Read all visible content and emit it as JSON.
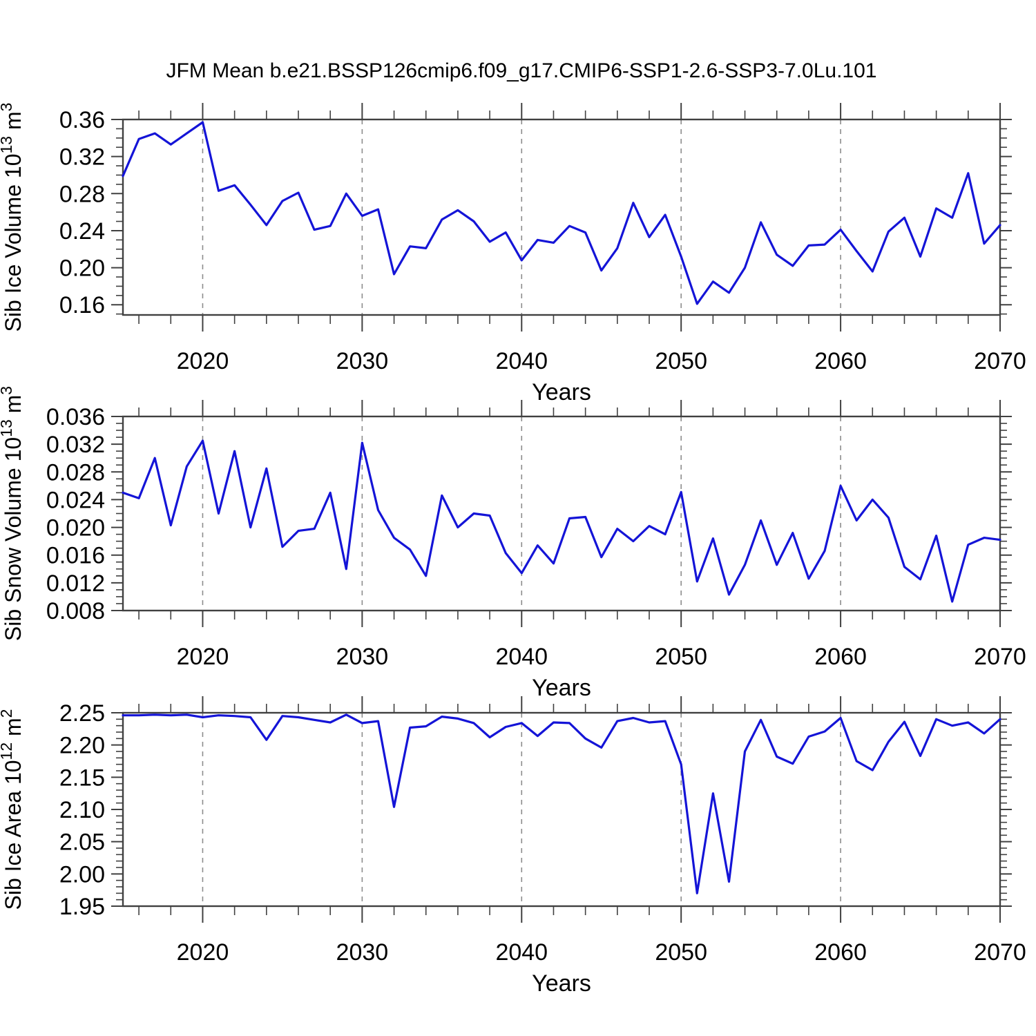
{
  "title": "JFM Mean b.e21.BSSP126cmip6.f09_g17.CMIP6-SSP1-2.6-SSP3-7.0Lu.101",
  "colors": {
    "line": "#1414d7",
    "axis": "#404040",
    "grid": "#8c8c8c",
    "text": "#000000",
    "background": "#ffffff"
  },
  "chart_data": [
    {
      "type": "line",
      "title": "",
      "ylabel": "Sib Ice Volume 10^13^ m^3^",
      "xlabel": "Years",
      "x_start": 2015,
      "x_end": 2070,
      "x_step": 1,
      "values": [
        0.299,
        0.339,
        0.345,
        0.333,
        0.345,
        0.357,
        0.283,
        0.289,
        0.268,
        0.246,
        0.272,
        0.281,
        0.241,
        0.245,
        0.28,
        0.256,
        0.263,
        0.193,
        0.223,
        0.221,
        0.252,
        0.262,
        0.25,
        0.228,
        0.238,
        0.208,
        0.23,
        0.227,
        0.245,
        0.238,
        0.197,
        0.221,
        0.27,
        0.233,
        0.257,
        0.212,
        0.161,
        0.185,
        0.173,
        0.2,
        0.249,
        0.214,
        0.202,
        0.224,
        0.225,
        0.241,
        0.218,
        0.196,
        0.239,
        0.254,
        0.212,
        0.264,
        0.254,
        0.302,
        0.226,
        0.246
      ],
      "xlim": [
        2015,
        2070
      ],
      "ylim": [
        0.149,
        0.36
      ],
      "xticks": [
        2020,
        2030,
        2040,
        2050,
        2060,
        2070
      ],
      "xtick_labels": [
        "2020",
        "2030",
        "2040",
        "2050",
        "2060",
        "2070"
      ],
      "x_minor_step": 2,
      "yticks": [
        0.16,
        0.2,
        0.24,
        0.28,
        0.32,
        0.36
      ],
      "ytick_labels": [
        "0.16",
        "0.20",
        "0.24",
        "0.28",
        "0.32",
        "0.36"
      ],
      "y_minor_step": 0.01,
      "grid_x": [
        2020,
        2030,
        2040,
        2050,
        2060
      ],
      "grid_style": "vertical-dashed",
      "legend": "none"
    },
    {
      "type": "line",
      "title": "",
      "ylabel": "Sib Snow Volume 10^13^ m^3^",
      "xlabel": "Years",
      "x_start": 2015,
      "x_end": 2070,
      "x_step": 1,
      "values": [
        0.025,
        0.0242,
        0.03,
        0.0203,
        0.0288,
        0.0325,
        0.022,
        0.031,
        0.02,
        0.0285,
        0.0172,
        0.0195,
        0.0198,
        0.025,
        0.014,
        0.0322,
        0.0225,
        0.0185,
        0.0168,
        0.013,
        0.0246,
        0.02,
        0.022,
        0.0217,
        0.0163,
        0.0134,
        0.0174,
        0.0148,
        0.0213,
        0.0215,
        0.0157,
        0.0198,
        0.018,
        0.0202,
        0.019,
        0.0251,
        0.0122,
        0.0184,
        0.0103,
        0.0146,
        0.021,
        0.0146,
        0.0192,
        0.0126,
        0.0166,
        0.026,
        0.021,
        0.024,
        0.0214,
        0.0143,
        0.0125,
        0.0188,
        0.0093,
        0.0175,
        0.0185,
        0.0182
      ],
      "xlim": [
        2015,
        2070
      ],
      "ylim": [
        0.008,
        0.036
      ],
      "xticks": [
        2020,
        2030,
        2040,
        2050,
        2060,
        2070
      ],
      "xtick_labels": [
        "2020",
        "2030",
        "2040",
        "2050",
        "2060",
        "2070"
      ],
      "x_minor_step": 2,
      "yticks": [
        0.008,
        0.012,
        0.016,
        0.02,
        0.024,
        0.028,
        0.032,
        0.036
      ],
      "ytick_labels": [
        "0.008",
        "0.012",
        "0.016",
        "0.020",
        "0.024",
        "0.028",
        "0.032",
        "0.036"
      ],
      "y_minor_step": 0.001,
      "grid_x": [
        2020,
        2030,
        2040,
        2050,
        2060
      ],
      "grid_style": "vertical-dashed",
      "legend": "none"
    },
    {
      "type": "line",
      "title": "",
      "ylabel": "Sib Ice Area 10^12^ m^2^",
      "xlabel": "Years",
      "x_start": 2015,
      "x_end": 2070,
      "x_step": 1,
      "values": [
        2.246,
        2.246,
        2.247,
        2.246,
        2.247,
        2.243,
        2.246,
        2.245,
        2.243,
        2.208,
        2.245,
        2.243,
        2.239,
        2.235,
        2.247,
        2.234,
        2.237,
        2.104,
        2.227,
        2.229,
        2.244,
        2.241,
        2.234,
        2.212,
        2.228,
        2.234,
        2.214,
        2.235,
        2.234,
        2.21,
        2.196,
        2.237,
        2.242,
        2.235,
        2.237,
        2.17,
        1.97,
        2.125,
        1.988,
        2.19,
        2.239,
        2.182,
        2.171,
        2.213,
        2.221,
        2.242,
        2.175,
        2.161,
        2.205,
        2.236,
        2.183,
        2.24,
        2.23,
        2.235,
        2.218,
        2.24
      ],
      "xlim": [
        2015,
        2070
      ],
      "ylim": [
        1.95,
        2.25
      ],
      "xticks": [
        2020,
        2030,
        2040,
        2050,
        2060,
        2070
      ],
      "xtick_labels": [
        "2020",
        "2030",
        "2040",
        "2050",
        "2060",
        "2070"
      ],
      "x_minor_step": 2,
      "yticks": [
        1.95,
        2.0,
        2.05,
        2.1,
        2.15,
        2.2,
        2.25
      ],
      "ytick_labels": [
        "1.95",
        "2.00",
        "2.05",
        "2.10",
        "2.15",
        "2.20",
        "2.25"
      ],
      "y_minor_step": 0.01,
      "grid_x": [
        2020,
        2030,
        2040,
        2050,
        2060
      ],
      "grid_style": "vertical-dashed",
      "legend": "none"
    }
  ]
}
